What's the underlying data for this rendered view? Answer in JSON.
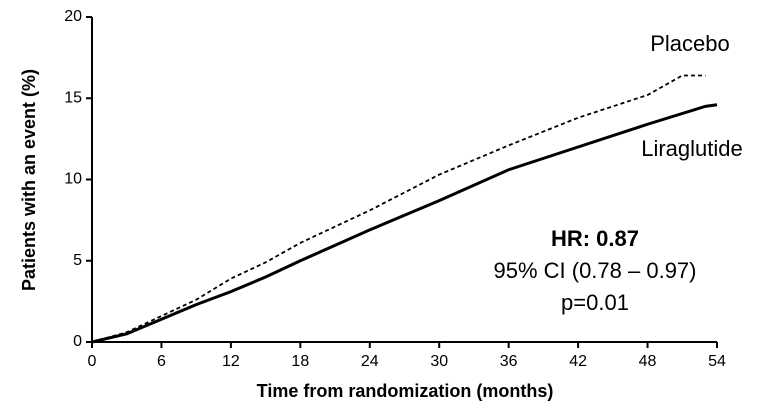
{
  "chart_data": {
    "type": "line",
    "x_label": "Time from randomization (months)",
    "y_label": "Patients with an event (%)",
    "xlim": [
      0,
      54
    ],
    "xticks": [
      0,
      6,
      12,
      18,
      24,
      30,
      36,
      42,
      48,
      54
    ],
    "ylim": [
      0,
      20
    ],
    "yticks": [
      0,
      5,
      10,
      15,
      20
    ],
    "series": [
      {
        "name": "Placebo",
        "color": "#000000",
        "linestyle": "dashed",
        "x": [
          0,
          3,
          6,
          9,
          12,
          15,
          18,
          24,
          30,
          36,
          42,
          48,
          51,
          53
        ],
        "values": [
          0,
          0.6,
          1.6,
          2.6,
          3.9,
          4.9,
          6.1,
          8.1,
          10.3,
          12.1,
          13.8,
          15.2,
          16.4,
          16.4
        ]
      },
      {
        "name": "Liraglutide",
        "color": "#000000",
        "linestyle": "solid",
        "x": [
          0,
          3,
          6,
          9,
          12,
          15,
          18,
          24,
          30,
          36,
          42,
          48,
          53,
          54
        ],
        "values": [
          0,
          0.5,
          1.4,
          2.3,
          3.1,
          4.0,
          5.0,
          6.9,
          8.7,
          10.6,
          12.0,
          13.4,
          14.5,
          14.6
        ]
      }
    ],
    "annotations": [
      "HR: 0.87",
      "95% CI (0.78 – 0.97)",
      "p=0.01"
    ]
  }
}
